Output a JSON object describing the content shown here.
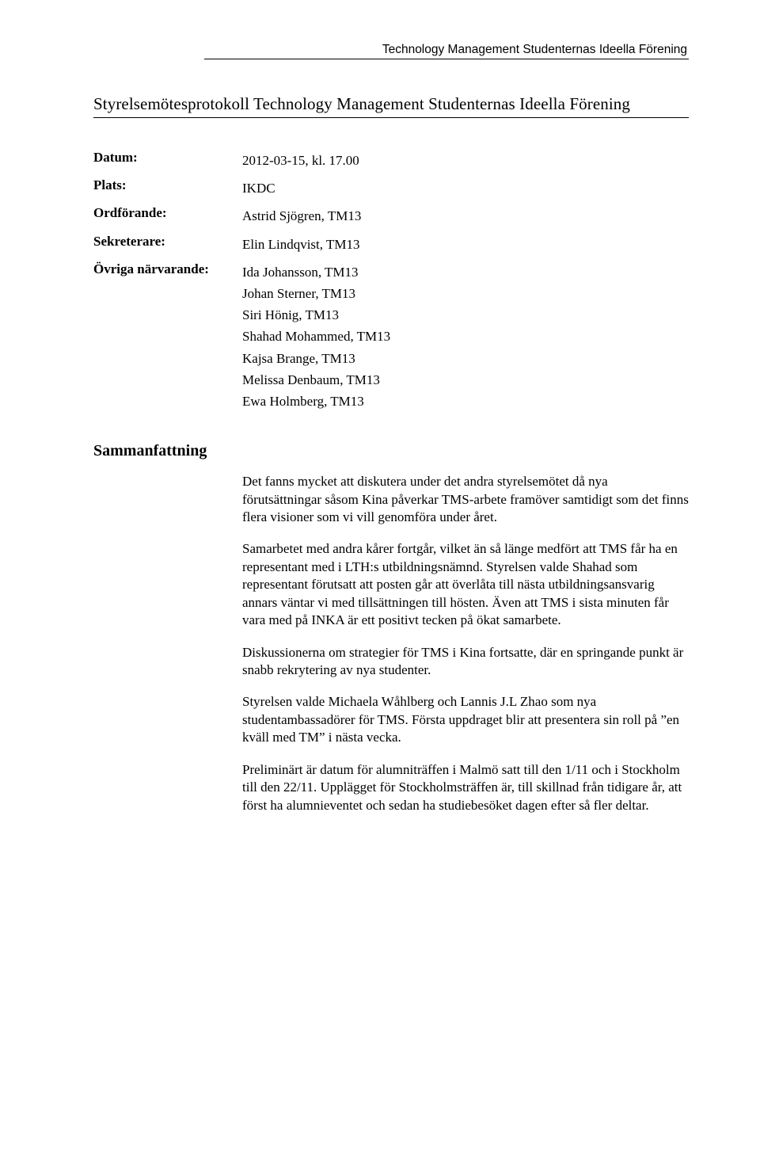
{
  "org_name": "Technology Management Studenternas Ideella Förening",
  "doc_title": "Styrelsemötesprotokoll Technology Management Studenternas Ideella Förening",
  "meta": {
    "datum_label": "Datum:",
    "datum_value": "2012-03-15, kl. 17.00",
    "plats_label": "Plats:",
    "plats_value": "IKDC",
    "ordforande_label": "Ordförande:",
    "ordforande_value": "Astrid Sjögren, TM13",
    "sekreterare_label": "Sekreterare:",
    "sekreterare_value": "Elin Lindqvist, TM13",
    "narvarande_label": "Övriga närvarande:",
    "narvarande_values": [
      "Ida Johansson, TM13",
      "Johan Sterner, TM13",
      "Siri Hönig, TM13",
      "Shahad Mohammed, TM13",
      "Kajsa Brange, TM13",
      "Melissa Denbaum, TM13",
      "Ewa Holmberg, TM13"
    ]
  },
  "summary_heading": "Sammanfattning",
  "summary": [
    "Det fanns mycket att diskutera under det andra styrelsemötet då nya förutsättningar såsom Kina påverkar TMS-arbete framöver samtidigt som det finns flera visioner som vi vill genomföra under året.",
    "Samarbetet med andra kårer fortgår, vilket än så länge medfört att TMS får ha en representant med i LTH:s utbildningsnämnd. Styrelsen valde Shahad som representant förutsatt att posten går att överlåta till nästa utbildningsansvarig annars väntar vi med tillsättningen till hösten. Även att TMS i sista minuten får vara med på INKA är ett positivt tecken på ökat samarbete.",
    "Diskussionerna om strategier för TMS i Kina fortsatte, där en springande punkt är snabb rekrytering av nya studenter.",
    "Styrelsen valde Michaela Wåhlberg och Lannis J.L Zhao som nya studentambassadörer för TMS. Första uppdraget blir att presentera sin roll på ”en kväll med TM” i nästa vecka.",
    "Preliminärt är datum för alumniträffen i Malmö satt till den 1/11 och i Stockholm till den 22/11. Upplägget för Stockholmsträffen är, till skillnad från tidigare år, att först ha alumnieventet och sedan ha studiebesöket dagen efter så fler deltar."
  ]
}
